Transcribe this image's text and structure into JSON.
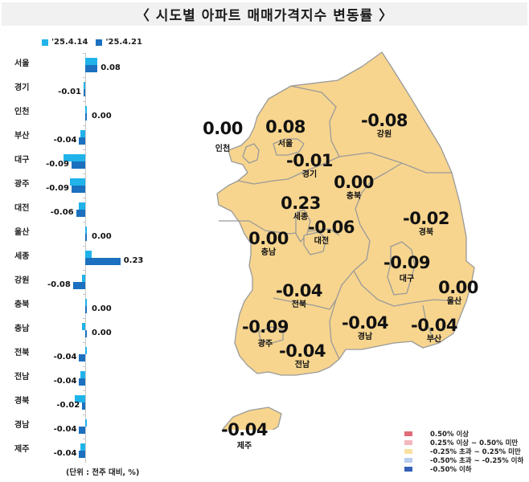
{
  "title": "〈 시도별 아파트 매매가격지수 변동률 〉",
  "bar_legend": {
    "prev_label": "'25.4.14",
    "cur_label": "'25.4.21",
    "prev_color": "#1fb3ea",
    "cur_color": "#1b70bf"
  },
  "unit_note": "(단위 : 전주 대비, %)",
  "chart_data": [
    {
      "type": "bar",
      "orientation": "horizontal",
      "title": "시도별 아파트 매매가격지수 변동률",
      "xlabel": "전주 대비 (%)",
      "ylabel": "",
      "categories": [
        "서울",
        "경기",
        "인천",
        "부산",
        "대구",
        "광주",
        "대전",
        "울산",
        "세종",
        "강원",
        "충북",
        "충남",
        "전북",
        "전남",
        "경북",
        "경남",
        "제주"
      ],
      "series": [
        {
          "name": "'25.4.14",
          "values": [
            0.08,
            -0.01,
            0.0,
            -0.03,
            -0.14,
            -0.1,
            -0.04,
            0.01,
            0.04,
            -0.02,
            0.0,
            -0.02,
            0.0,
            -0.03,
            -0.07,
            0.0,
            -0.03
          ]
        },
        {
          "name": "'25.4.21",
          "values": [
            0.08,
            -0.01,
            0.0,
            -0.04,
            -0.09,
            -0.09,
            -0.06,
            0.0,
            0.23,
            -0.08,
            0.0,
            0.0,
            -0.04,
            -0.04,
            -0.02,
            -0.04,
            -0.04
          ]
        }
      ],
      "data_labels": [
        "0.08",
        "-0.01",
        "0.00",
        "-0.04",
        "-0.09",
        "-0.09",
        "-0.06",
        "0.00",
        "0.23",
        "-0.08",
        "0.00",
        "0.00",
        "-0.04",
        "-0.04",
        "-0.02",
        "-0.04",
        "-0.04"
      ],
      "legend_position": "top",
      "grid": false
    },
    {
      "type": "choropleth",
      "title": "시도별 아파트 매매가격지수 변동률 (지도)",
      "regions": [
        {
          "name": "인천",
          "value": "0.00"
        },
        {
          "name": "서울",
          "value": "0.08"
        },
        {
          "name": "경기",
          "value": "-0.01"
        },
        {
          "name": "강원",
          "value": "-0.08"
        },
        {
          "name": "충북",
          "value": "0.00"
        },
        {
          "name": "세종",
          "value": "0.23"
        },
        {
          "name": "대전",
          "value": "-0.06"
        },
        {
          "name": "충남",
          "value": "0.00"
        },
        {
          "name": "경북",
          "value": "-0.02"
        },
        {
          "name": "대구",
          "value": "-0.09"
        },
        {
          "name": "울산",
          "value": "0.00"
        },
        {
          "name": "전북",
          "value": "-0.04"
        },
        {
          "name": "광주",
          "value": "-0.09"
        },
        {
          "name": "전남",
          "value": "-0.04"
        },
        {
          "name": "경남",
          "value": "-0.04"
        },
        {
          "name": "부산",
          "value": "-0.04"
        },
        {
          "name": "제주",
          "value": "-0.04"
        }
      ],
      "legend": [
        {
          "label": "0.50% 이상",
          "color": "#e06d78"
        },
        {
          "label": "0.25% 이상 ~ 0.50% 미만",
          "color": "#f4b6bd"
        },
        {
          "label": "-0.25% 초과 ~ 0.25% 미만",
          "color": "#fbe0a0"
        },
        {
          "label": "-0.50% 초과 ~ -0.25% 이하",
          "color": "#b9cdef"
        },
        {
          "label": "-0.50% 이하",
          "color": "#3560b8"
        }
      ],
      "fill_color": "#f7d58e",
      "border_color": "#9a9a9a"
    }
  ],
  "rows": [
    {
      "label": "서울",
      "prev": 0.08,
      "cur": 0.08,
      "text": "0.08"
    },
    {
      "label": "경기",
      "prev": -0.01,
      "cur": -0.01,
      "text": "-0.01"
    },
    {
      "label": "인천",
      "prev": 0.0,
      "cur": 0.0,
      "text": "0.00"
    },
    {
      "label": "부산",
      "prev": -0.03,
      "cur": -0.04,
      "text": "-0.04"
    },
    {
      "label": "대구",
      "prev": -0.14,
      "cur": -0.09,
      "text": "-0.09"
    },
    {
      "label": "광주",
      "prev": -0.1,
      "cur": -0.09,
      "text": "-0.09"
    },
    {
      "label": "대전",
      "prev": -0.04,
      "cur": -0.06,
      "text": "-0.06"
    },
    {
      "label": "울산",
      "prev": 0.01,
      "cur": 0.0,
      "text": "0.00"
    },
    {
      "label": "세종",
      "prev": 0.04,
      "cur": 0.23,
      "text": "0.23"
    },
    {
      "label": "강원",
      "prev": -0.02,
      "cur": -0.08,
      "text": "-0.08"
    },
    {
      "label": "충북",
      "prev": 0.0,
      "cur": 0.0,
      "text": "0.00"
    },
    {
      "label": "충남",
      "prev": -0.02,
      "cur": 0.0,
      "text": "0.00"
    },
    {
      "label": "전북",
      "prev": 0.0,
      "cur": -0.04,
      "text": "-0.04"
    },
    {
      "label": "전남",
      "prev": -0.03,
      "cur": -0.04,
      "text": "-0.04"
    },
    {
      "label": "경북",
      "prev": -0.07,
      "cur": -0.02,
      "text": "-0.02"
    },
    {
      "label": "경남",
      "prev": 0.0,
      "cur": -0.04,
      "text": "-0.04"
    },
    {
      "label": "제주",
      "prev": -0.03,
      "cur": -0.04,
      "text": "-0.04"
    }
  ],
  "map_labels": {
    "incheon": {
      "name": "인천",
      "value": "0.00"
    },
    "seoul": {
      "name": "서울",
      "value": "0.08"
    },
    "gyeonggi": {
      "name": "경기",
      "value": "-0.01"
    },
    "gangwon": {
      "name": "강원",
      "value": "-0.08"
    },
    "chungbuk": {
      "name": "충북",
      "value": "0.00"
    },
    "sejong": {
      "name": "세종",
      "value": "0.23"
    },
    "daejeon": {
      "name": "대전",
      "value": "-0.06"
    },
    "chungnam": {
      "name": "충남",
      "value": "0.00"
    },
    "gyeongbuk": {
      "name": "경북",
      "value": "-0.02"
    },
    "daegu": {
      "name": "대구",
      "value": "-0.09"
    },
    "ulsan": {
      "name": "울산",
      "value": "0.00"
    },
    "jeonbuk": {
      "name": "전북",
      "value": "-0.04"
    },
    "gwangju": {
      "name": "광주",
      "value": "-0.09"
    },
    "jeonnam": {
      "name": "전남",
      "value": "-0.04"
    },
    "gyeongnam": {
      "name": "경남",
      "value": "-0.04"
    },
    "busan": {
      "name": "부산",
      "value": "-0.04"
    },
    "jeju": {
      "name": "제주",
      "value": "-0.04"
    }
  },
  "map_legend": [
    {
      "label": "0.50% 이상",
      "color": "#e06d78"
    },
    {
      "label": "0.25% 이상 ~ 0.50% 미만",
      "color": "#f4b6bd"
    },
    {
      "label": "-0.25% 초과 ~ 0.25% 미만",
      "color": "#fbe0a0"
    },
    {
      "label": "-0.50% 초과 ~ -0.25% 이하",
      "color": "#b9cdef"
    },
    {
      "label": "-0.50% 이하",
      "color": "#3560b8"
    }
  ]
}
